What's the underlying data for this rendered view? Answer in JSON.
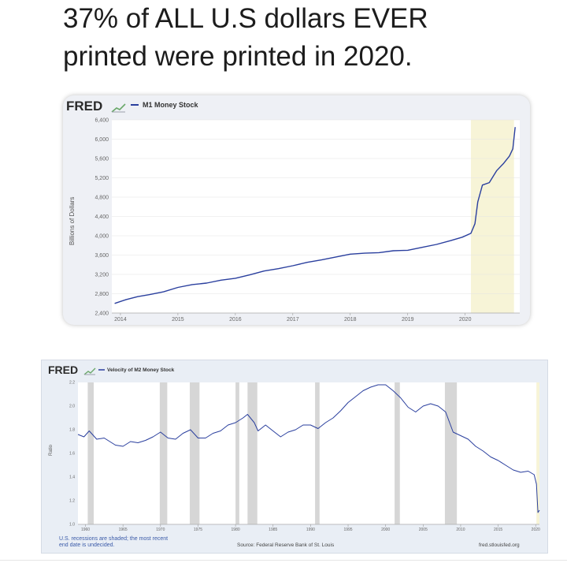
{
  "headline": {
    "line1": "37% of ALL U.S dollars EVER",
    "line2": "printed were printed in 2020."
  },
  "colors": {
    "series": "#2a3f9e",
    "recession": "#d6d6d6",
    "highlight": "#f7f4d7",
    "plot_bg": "#ffffff"
  },
  "chart_data": [
    {
      "type": "line",
      "logo": "FRED",
      "legend": "M1 Money Stock",
      "ylabel": "Billions of Dollars",
      "xlabel": "",
      "ylim": [
        2400,
        6400
      ],
      "xlim": [
        2013.85,
        2020.95
      ],
      "yticks": [
        "2,400",
        "2,800",
        "3,200",
        "3,600",
        "4,000",
        "4,400",
        "4,800",
        "5,200",
        "5,600",
        "6,000",
        "6,400"
      ],
      "xticks": [
        "2014",
        "2015",
        "2016",
        "2017",
        "2018",
        "2019",
        "2020"
      ],
      "shaded_regions": [
        [
          2020.1,
          2020.85
        ]
      ],
      "grid": true,
      "series": [
        {
          "x": [
            2013.9,
            2014.1,
            2014.3,
            2014.5,
            2014.75,
            2015.0,
            2015.25,
            2015.5,
            2015.75,
            2016.0,
            2016.25,
            2016.5,
            2016.75,
            2017.0,
            2017.25,
            2017.5,
            2017.75,
            2018.0,
            2018.25,
            2018.5,
            2018.75,
            2019.0,
            2019.25,
            2019.5,
            2019.75,
            2019.95,
            2020.1,
            2020.17,
            2020.22,
            2020.3,
            2020.42,
            2020.55,
            2020.67,
            2020.77,
            2020.83,
            2020.87
          ],
          "values": [
            2600,
            2680,
            2740,
            2780,
            2840,
            2930,
            2990,
            3020,
            3080,
            3120,
            3190,
            3270,
            3320,
            3380,
            3450,
            3500,
            3560,
            3620,
            3640,
            3650,
            3690,
            3700,
            3760,
            3820,
            3900,
            3970,
            4050,
            4250,
            4700,
            5050,
            5100,
            5350,
            5500,
            5650,
            5800,
            6250
          ]
        }
      ]
    },
    {
      "type": "line",
      "logo": "FRED",
      "legend": "Velocity of M2 Money Stock",
      "ylabel": "Ratio",
      "xlabel": "",
      "ylim": [
        1.0,
        2.2
      ],
      "xlim": [
        1959,
        2020.5
      ],
      "yticks": [
        "1.0",
        "1.2",
        "1.4",
        "1.6",
        "1.8",
        "2.0",
        "2.2"
      ],
      "xticks": [
        "1960",
        "1965",
        "1970",
        "1975",
        "1980",
        "1985",
        "1990",
        "1995",
        "2000",
        "2005",
        "2010",
        "2015",
        "2020"
      ],
      "shaded_regions": [
        [
          1960.3,
          1961.1
        ],
        [
          1969.9,
          1970.9
        ],
        [
          1973.9,
          1975.2
        ],
        [
          1980.0,
          1980.5
        ],
        [
          1981.6,
          1982.9
        ],
        [
          1990.6,
          1991.2
        ],
        [
          2001.2,
          2001.9
        ],
        [
          2007.9,
          2009.5
        ],
        [
          2020.1,
          2020.5
        ]
      ],
      "grid": false,
      "series": [
        {
          "x": [
            1959,
            1959.8,
            1960.5,
            1961.5,
            1962.5,
            1964,
            1965,
            1966,
            1967,
            1968,
            1969,
            1970,
            1971,
            1972,
            1973,
            1974,
            1975,
            1976,
            1977,
            1978,
            1979,
            1980,
            1981,
            1981.6,
            1982.5,
            1983,
            1984,
            1985,
            1986,
            1987,
            1988,
            1989,
            1990,
            1991,
            1992,
            1993,
            1994,
            1995,
            1996,
            1997,
            1998,
            1999,
            2000,
            2001,
            2002,
            2003,
            2004,
            2005,
            2006,
            2007,
            2008,
            2009,
            2010,
            2011,
            2012,
            2013,
            2014,
            2015,
            2016,
            2017,
            2018,
            2019,
            2019.8,
            2020.1,
            2020.3,
            2020.5
          ],
          "values": [
            1.76,
            1.74,
            1.79,
            1.72,
            1.73,
            1.67,
            1.66,
            1.7,
            1.69,
            1.71,
            1.74,
            1.78,
            1.73,
            1.72,
            1.77,
            1.8,
            1.73,
            1.73,
            1.77,
            1.79,
            1.84,
            1.86,
            1.9,
            1.93,
            1.86,
            1.79,
            1.84,
            1.79,
            1.74,
            1.78,
            1.8,
            1.84,
            1.84,
            1.81,
            1.86,
            1.9,
            1.96,
            2.03,
            2.08,
            2.13,
            2.16,
            2.18,
            2.18,
            2.13,
            2.07,
            1.99,
            1.95,
            2.0,
            2.02,
            2.0,
            1.95,
            1.78,
            1.75,
            1.72,
            1.66,
            1.62,
            1.57,
            1.54,
            1.5,
            1.46,
            1.44,
            1.45,
            1.42,
            1.34,
            1.1,
            1.12
          ]
        }
      ],
      "footnote": "U.S. recessions are shaded; the most recent end date is undecided.",
      "source": "Source: Federal Reserve Bank of St. Louis",
      "site": "fred.stlouisfed.org"
    }
  ]
}
